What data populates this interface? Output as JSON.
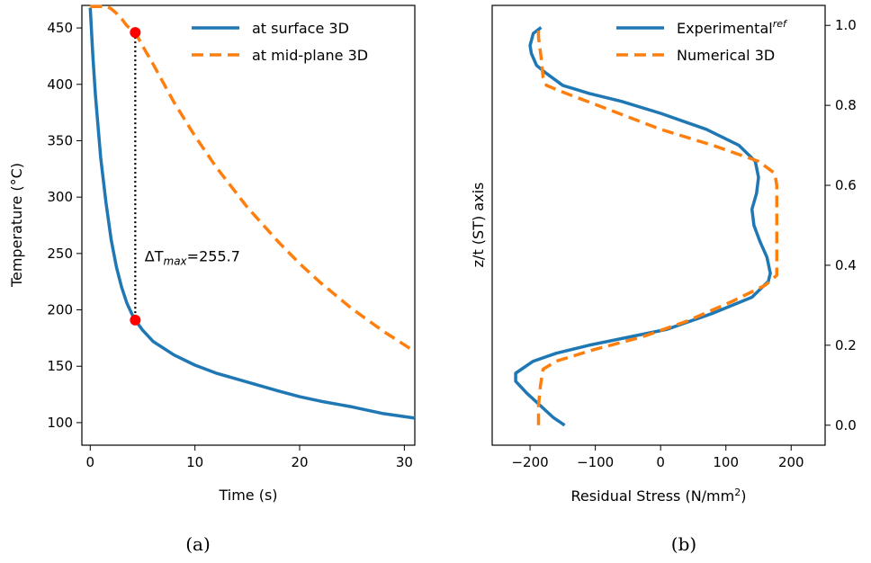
{
  "captions": {
    "a": "(a)",
    "b": "(b)"
  },
  "chart_data": [
    {
      "type": "line",
      "xlabel": "Time (s)",
      "ylabel": "Temperature (°C)",
      "xlim": [
        -0.8,
        31
      ],
      "ylim": [
        80,
        470
      ],
      "xticks": [
        0,
        10,
        20,
        30
      ],
      "yticks": [
        100,
        150,
        200,
        250,
        300,
        350,
        400,
        450
      ],
      "grid": false,
      "legend_position": "top-right",
      "series": [
        {
          "name": "at surface 3D",
          "color": "#1f77b4",
          "style": "solid",
          "x": [
            0,
            0.25,
            0.5,
            1,
            1.5,
            2,
            2.5,
            3,
            3.5,
            4,
            4.3,
            5,
            6,
            8,
            10,
            12,
            15,
            18,
            20,
            22,
            25,
            28,
            31
          ],
          "y": [
            468,
            425,
            390,
            335,
            295,
            262,
            238,
            220,
            206,
            196,
            191,
            182,
            172,
            160,
            151,
            144,
            136,
            128,
            123,
            119,
            114,
            108,
            104
          ]
        },
        {
          "name": "at mid-plane 3D",
          "color": "#ff7f0e",
          "style": "dashed",
          "x": [
            0,
            1,
            1.6,
            2,
            2.5,
            3,
            3.5,
            4,
            4.3,
            5,
            6,
            8,
            10,
            12,
            15,
            18,
            20,
            22,
            25,
            28,
            31
          ],
          "y": [
            469,
            469,
            469,
            467,
            463,
            458,
            452,
            448,
            446,
            434,
            418,
            384,
            354,
            327,
            291,
            260,
            241,
            224,
            201,
            181,
            163
          ]
        }
      ],
      "markers": [
        {
          "x": 4.3,
          "y": 446,
          "color": "#ff0000"
        },
        {
          "x": 4.3,
          "y": 191,
          "color": "#ff0000"
        }
      ],
      "annotation": {
        "prefix": "ΔT",
        "subscript": "max",
        "suffix": "=255.7",
        "x": 5.2,
        "y": 243
      }
    },
    {
      "type": "line",
      "xlabel_main": "Residual Stress (N/mm",
      "xlabel_sup": "2",
      "xlabel_end": ")",
      "ylabel": "z/t (ST) axis",
      "xlim": [
        -258,
        252
      ],
      "ylim": [
        -0.05,
        1.05
      ],
      "xticks": [
        -200,
        -100,
        0,
        100,
        200
      ],
      "yticks": [
        0.0,
        0.2,
        0.4,
        0.6,
        0.8,
        1.0
      ],
      "yaxis_side": "right",
      "grid": false,
      "legend_position": "top-right",
      "series": [
        {
          "name": "Experimental",
          "name_sup": "ref",
          "color": "#1f77b4",
          "style": "solid",
          "x": [
            -147,
            -165,
            -185,
            -205,
            -222,
            -222,
            -213,
            -195,
            -160,
            -110,
            -50,
            10,
            80,
            140,
            165,
            168,
            163,
            152,
            143,
            140,
            147,
            150,
            145,
            120,
            70,
            0,
            -60,
            -110,
            -150,
            -175,
            -190,
            -198,
            -200,
            -195,
            -183
          ],
          "y": [
            0.0,
            0.02,
            0.05,
            0.08,
            0.11,
            0.13,
            0.14,
            0.16,
            0.18,
            0.2,
            0.22,
            0.24,
            0.28,
            0.32,
            0.36,
            0.38,
            0.42,
            0.46,
            0.5,
            0.54,
            0.58,
            0.62,
            0.66,
            0.7,
            0.74,
            0.78,
            0.81,
            0.83,
            0.85,
            0.88,
            0.9,
            0.93,
            0.95,
            0.98,
            0.995
          ]
        },
        {
          "name": "Numerical 3D",
          "color": "#ff7f0e",
          "style": "dashed",
          "x": [
            -187,
            -187,
            -184,
            -180,
            -160,
            -100,
            -30,
            40,
            110,
            160,
            178,
            178,
            178,
            178,
            175,
            150,
            80,
            0,
            -80,
            -145,
            -175,
            -180,
            -183,
            -187,
            -187
          ],
          "y": [
            0.0,
            0.05,
            0.1,
            0.14,
            0.16,
            0.19,
            0.22,
            0.26,
            0.31,
            0.35,
            0.375,
            0.4,
            0.5,
            0.6,
            0.63,
            0.66,
            0.7,
            0.74,
            0.79,
            0.83,
            0.85,
            0.87,
            0.92,
            0.97,
            1.0
          ]
        }
      ]
    }
  ]
}
